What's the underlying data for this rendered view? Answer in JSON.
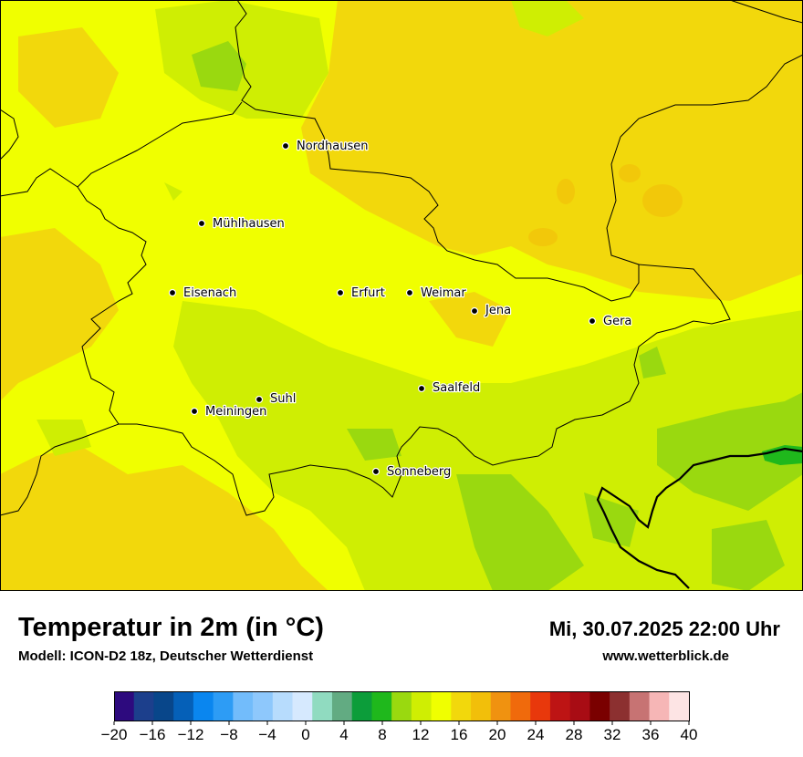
{
  "header": {
    "title": "Temperatur in 2m (in °C)",
    "model": "Modell: ICON-D2 18z, Deutscher Wetterdienst",
    "datetime": "Mi, 30.07.2025 22:00 Uhr",
    "website": "www.wetterblick.de"
  },
  "cities": [
    {
      "name": "Nordhausen"
    },
    {
      "name": "Mühlhausen"
    },
    {
      "name": "Eisenach"
    },
    {
      "name": "Erfurt"
    },
    {
      "name": "Weimar"
    },
    {
      "name": "Jena"
    },
    {
      "name": "Gera"
    },
    {
      "name": "Suhl"
    },
    {
      "name": "Meiningen"
    },
    {
      "name": "Saalfeld"
    },
    {
      "name": "Sonneberg"
    }
  ],
  "legend": {
    "unit": "°C",
    "colors": [
      "#2d0a7e",
      "#1c3f8c",
      "#08468a",
      "#0560b8",
      "#0a86ef",
      "#2d9cf5",
      "#72bcfb",
      "#8ec8fc",
      "#b7dcfd",
      "#d6e9fe",
      "#90dbc0",
      "#62ab82",
      "#0c9d3a",
      "#1fb81c",
      "#9ad90f",
      "#cfee03",
      "#f0ff00",
      "#f2d80c",
      "#f2bf0a",
      "#f09210",
      "#f06a0c",
      "#e8380c",
      "#bd1414",
      "#a80c14",
      "#7a0000",
      "#8c3030",
      "#c77373",
      "#f6b6b6",
      "#fde4e4"
    ],
    "tick_labels": [
      "−20",
      "−16",
      "−12",
      "−8",
      "−4",
      "0",
      "4",
      "8",
      "12",
      "16",
      "20",
      "24",
      "28",
      "32",
      "36",
      "40"
    ]
  },
  "map_colors": {
    "warm_yellow": "#f0ff00",
    "orange_yellow": "#f2d80c",
    "yellow_green": "#cfee03",
    "green": "#9ad90f",
    "dark_green": "#1fb81c",
    "border": "#000000"
  }
}
